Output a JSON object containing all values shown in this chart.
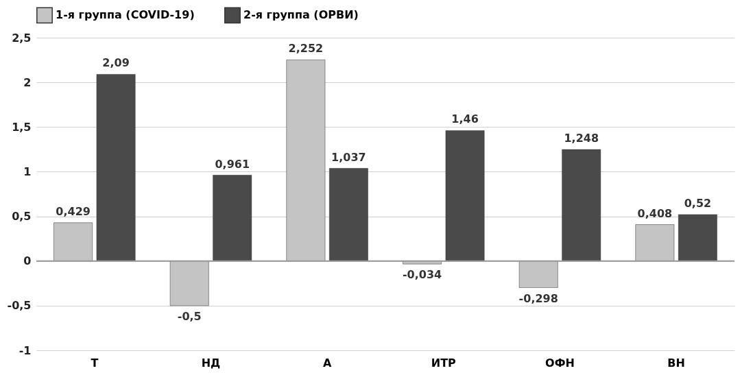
{
  "chart_data": {
    "type": "bar",
    "categories": [
      "Т",
      "НД",
      "А",
      "ИТР",
      "ОФН",
      "ВН"
    ],
    "series": [
      {
        "name": "1-я группа (COVID-19)",
        "color": "#c4c4c4",
        "values": [
          0.429,
          -0.5,
          2.252,
          -0.034,
          -0.298,
          0.408
        ],
        "value_labels": [
          "0,429",
          "-0,5",
          "2,252",
          "-0,034",
          "-0,298",
          "0,408"
        ]
      },
      {
        "name": "2-я группа (ОРВИ)",
        "color": "#4a4a4a",
        "values": [
          2.09,
          0.961,
          1.037,
          1.46,
          1.248,
          0.52
        ],
        "value_labels": [
          "2,09",
          "0,961",
          "1,037",
          "1,46",
          "1,248",
          "0,52"
        ]
      }
    ],
    "ylim": [
      -1,
      2.5
    ],
    "yticks": [
      {
        "value": -1,
        "label": "-1"
      },
      {
        "value": -0.5,
        "label": "-0,5"
      },
      0,
      {
        "value": 0.5,
        "label": "0,5"
      },
      1,
      {
        "value": 1.5,
        "label": "1,5"
      },
      2,
      {
        "value": 2.5,
        "label": "2,5"
      }
    ],
    "grid": "y",
    "legend": "top"
  }
}
